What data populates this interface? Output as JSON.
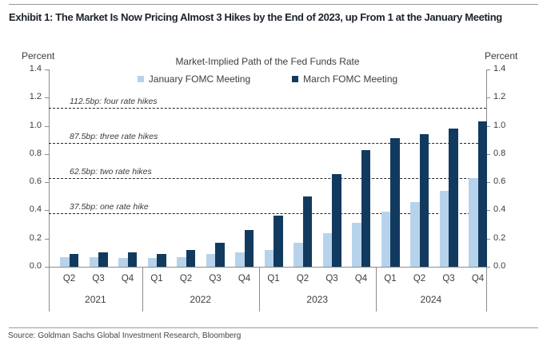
{
  "exhibit": {
    "title": "Exhibit 1: The Market Is Now Pricing Almost 3 Hikes by the End of 2023, up From 1 at the January Meeting",
    "source": "Source: Goldman Sachs Global Investment Research, Bloomberg"
  },
  "chart_data": {
    "type": "bar",
    "title": "Market-Implied Path of the Fed Funds Rate",
    "y_axis_label": "Percent",
    "ylim": [
      0,
      1.4
    ],
    "ytick_step": 0.2,
    "ytick_labels": [
      "0.0",
      "0.2",
      "0.4",
      "0.6",
      "0.8",
      "1.0",
      "1.2",
      "1.4"
    ],
    "grid": false,
    "legend_position": "top-center",
    "categories": [
      "Q2",
      "Q3",
      "Q4",
      "Q1",
      "Q2",
      "Q3",
      "Q4",
      "Q1",
      "Q2",
      "Q3",
      "Q4",
      "Q1",
      "Q2",
      "Q3",
      "Q4"
    ],
    "year_groups": [
      {
        "label": "2021",
        "quarters": 3
      },
      {
        "label": "2022",
        "quarters": 4
      },
      {
        "label": "2023",
        "quarters": 4
      },
      {
        "label": "2024",
        "quarters": 4
      }
    ],
    "series": [
      {
        "name": "January FOMC Meeting",
        "color": "#b7d3eb",
        "values": [
          0.07,
          0.07,
          0.06,
          0.06,
          0.07,
          0.09,
          0.1,
          0.12,
          0.17,
          0.24,
          0.31,
          0.39,
          0.46,
          0.54,
          0.63
        ]
      },
      {
        "name": "March FOMC Meeting",
        "color": "#123a5f",
        "values": [
          0.09,
          0.1,
          0.1,
          0.09,
          0.12,
          0.17,
          0.26,
          0.36,
          0.5,
          0.66,
          0.83,
          0.91,
          0.94,
          0.98,
          1.03
        ]
      }
    ],
    "reference_lines": [
      {
        "value": 1.125,
        "label": "112.5bp: four rate hikes"
      },
      {
        "value": 0.875,
        "label": "87.5bp: three rate hikes"
      },
      {
        "value": 0.625,
        "label": "62.5bp: two rate hikes"
      },
      {
        "value": 0.375,
        "label": "37.5bp: one rate hike"
      }
    ]
  },
  "colors": {
    "axis": "#8c8c8c",
    "text": "#3d3d3d",
    "title_text": "#1d222b",
    "reference_line": "#262626",
    "rule": "#9a9a9a"
  }
}
